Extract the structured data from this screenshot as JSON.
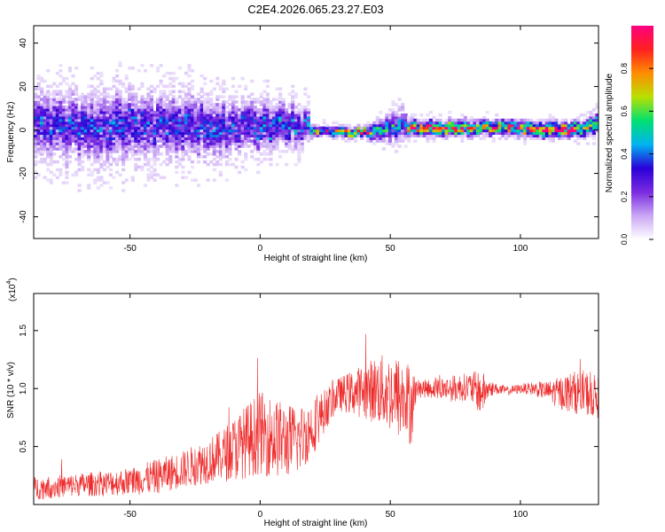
{
  "figure": {
    "title": "C2E4.2026.065.23.27.E03"
  },
  "chart_data": [
    {
      "type": "heatmap",
      "title": "C2E4.2026.065.23.27.E03",
      "xlabel": "Height of straight line (km)",
      "ylabel": "Frequency (Hz)",
      "xlim": [
        -87,
        130
      ],
      "ylim": [
        -50,
        48
      ],
      "xticks": [
        -50,
        0,
        50,
        100
      ],
      "yticks": [
        -40,
        -20,
        0,
        20,
        40
      ],
      "grid": false,
      "colorbar": {
        "label": "Normalized spectral amplitude",
        "range": [
          0,
          1
        ],
        "ticks": [
          0.0,
          0.2,
          0.4,
          0.6,
          0.8
        ],
        "tick_labels": [
          "0.0",
          "0.2",
          "0.4",
          "0.6",
          "0.8"
        ],
        "colormap": [
          "#ffffff",
          "#c9a6f5",
          "#7a2be0",
          "#2a00d8",
          "#00b4f0",
          "#00e070",
          "#b8e000",
          "#ff8c00",
          "#ff2020",
          "#ff007f"
        ]
      },
      "ridge": {
        "x": [
          -85,
          -70,
          -55,
          -40,
          -25,
          -10,
          0,
          10,
          18,
          20,
          30,
          40,
          45,
          50,
          55,
          57,
          60,
          70,
          80,
          90,
          100,
          110,
          120,
          130
        ],
        "center_hz": [
          2,
          1,
          2,
          1,
          2,
          1,
          2,
          3,
          2,
          0,
          -1,
          -1,
          0,
          1,
          3,
          1,
          1,
          1,
          1,
          1,
          1,
          0,
          0,
          3
        ],
        "spread_hz": [
          12,
          12,
          13,
          12,
          12,
          10,
          9,
          8,
          7,
          2,
          2,
          2,
          4,
          5,
          6,
          3,
          3,
          3,
          3,
          3,
          3,
          3,
          3,
          4
        ],
        "peak_amplitude": [
          0.3,
          0.3,
          0.3,
          0.3,
          0.3,
          0.3,
          0.35,
          0.35,
          0.3,
          0.55,
          0.75,
          0.75,
          0.5,
          0.45,
          0.35,
          0.7,
          0.8,
          0.8,
          0.75,
          0.75,
          0.8,
          0.85,
          0.85,
          0.5
        ]
      }
    },
    {
      "type": "line",
      "xlabel": "Height of straight line (km)",
      "ylabel": "SNR (10 * v/v)",
      "multiplier_label": "(x10",
      "multiplier_exp": "4",
      "xlim": [
        -87,
        130
      ],
      "ylim": [
        0,
        1.82
      ],
      "xticks": [
        -50,
        0,
        50,
        100
      ],
      "yticks": [
        0.5,
        1.0,
        1.5
      ],
      "ytick_labels": [
        "0.5",
        "1.0",
        "1.5"
      ],
      "grid": false,
      "series": [
        {
          "color": "#ee2b2b",
          "x": [
            -87,
            -80,
            -70,
            -60,
            -50,
            -40,
            -30,
            -20,
            -15,
            -10,
            -5,
            0,
            5,
            10,
            15,
            20,
            25,
            30,
            40,
            45,
            50,
            55,
            58,
            60,
            65,
            70,
            75,
            80,
            85,
            88,
            90,
            95,
            100,
            105,
            110,
            115,
            120,
            125,
            130
          ],
          "y": [
            0.14,
            0.15,
            0.17,
            0.18,
            0.2,
            0.24,
            0.3,
            0.38,
            0.42,
            0.48,
            0.55,
            0.62,
            0.58,
            0.55,
            0.56,
            0.66,
            0.82,
            0.95,
            0.98,
            0.99,
            0.96,
            0.9,
            0.86,
            1.0,
            1.0,
            1.0,
            1.0,
            1.02,
            0.96,
            1.0,
            1.0,
            0.98,
            1.0,
            1.0,
            0.98,
            0.96,
            0.97,
            0.96,
            0.92
          ],
          "noise_amplitude": [
            0.1,
            0.1,
            0.1,
            0.11,
            0.12,
            0.15,
            0.16,
            0.2,
            0.22,
            0.28,
            0.32,
            0.36,
            0.35,
            0.32,
            0.3,
            0.25,
            0.18,
            0.14,
            0.24,
            0.3,
            0.34,
            0.38,
            0.36,
            0.08,
            0.08,
            0.1,
            0.12,
            0.12,
            0.2,
            0.08,
            0.05,
            0.04,
            0.04,
            0.06,
            0.08,
            0.14,
            0.18,
            0.2,
            0.18
          ]
        }
      ]
    }
  ]
}
